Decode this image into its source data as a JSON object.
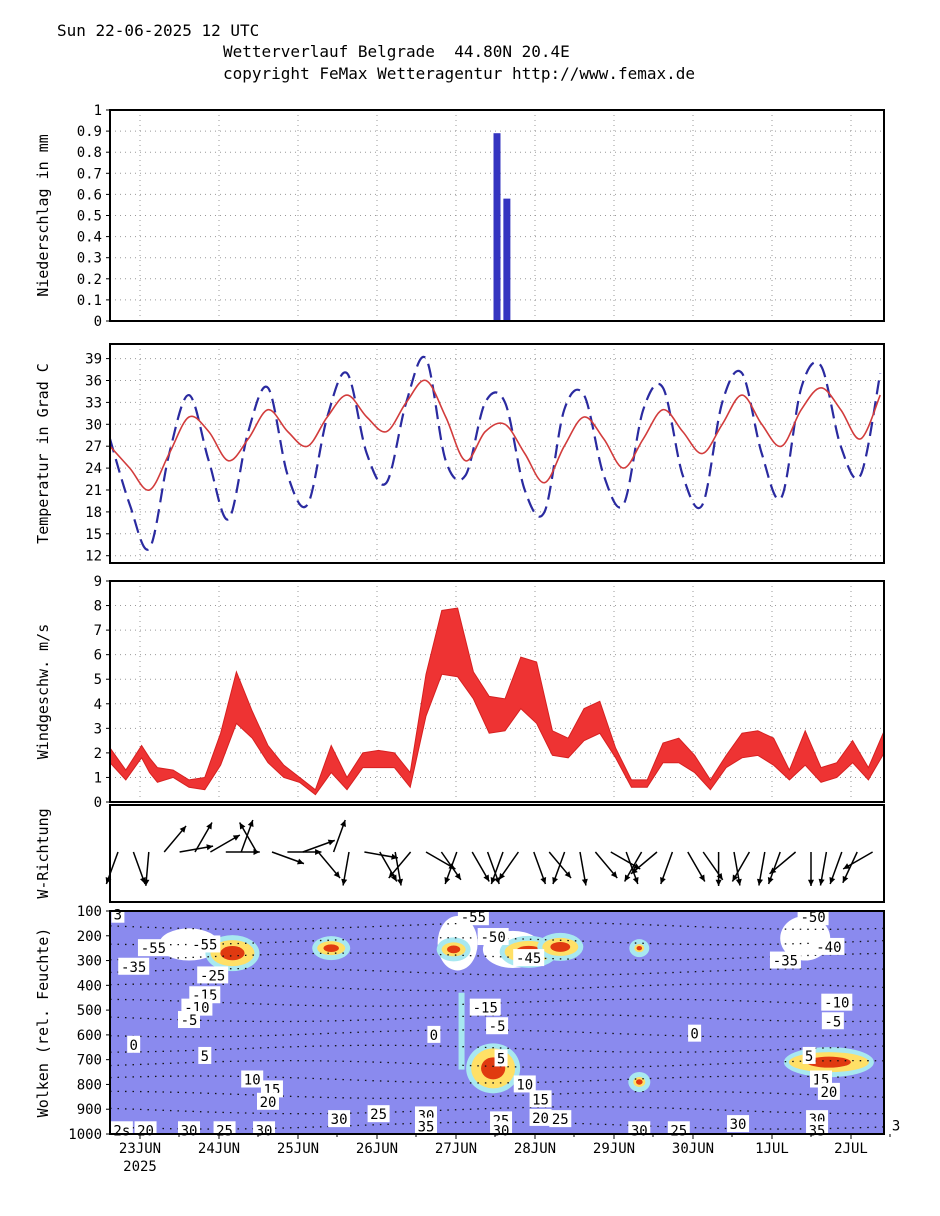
{
  "header": {
    "line1": "Sun 22-06-2025 12 UTC",
    "line2": "Wetterverlauf Belgrade  44.80N 20.4E",
    "line3": "copyright FeMax Wetteragentur http://www.femax.de"
  },
  "colors": {
    "precip": "#3535c0",
    "temp_max": "#2a2aa0",
    "temp_mean": "#d23c3c",
    "wind": "#ee3333",
    "cloud_bg": "#8a8aee",
    "cloud_high": "#ffe066",
    "cloud_core": "#e03a10"
  },
  "chart_data": [
    {
      "type": "bar",
      "title": "",
      "ylabel": "Niederschlag in mm",
      "ylim": [
        0,
        1
      ],
      "yticks": [
        "0",
        "0.1",
        "0.2",
        "0.3",
        "0.4",
        "0.5",
        "0.6",
        "0.7",
        "0.8",
        "0.9",
        "1"
      ],
      "x": [
        4.5,
        4.625
      ],
      "values": [
        0.89,
        0.58
      ]
    },
    {
      "type": "line",
      "ylabel": "Temperatur in Grad C",
      "ylim": [
        11,
        41
      ],
      "yticks": [
        "12",
        "15",
        "18",
        "21",
        "24",
        "27",
        "30",
        "33",
        "36",
        "39"
      ],
      "series": [
        {
          "name": "Temperatur (dashed)",
          "x": [
            0,
            0.25,
            0.5,
            0.75,
            1,
            1.25,
            1.5,
            1.75,
            2,
            2.25,
            2.5,
            2.75,
            3,
            3.25,
            3.5,
            3.75,
            4,
            4.25,
            4.5,
            4.75,
            5,
            5.25,
            5.5,
            5.75,
            6,
            6.25,
            6.5,
            6.75,
            7,
            7.25,
            7.5,
            7.75,
            8,
            8.25,
            8.5,
            8.75,
            9,
            9.25,
            9.5,
            9.75
          ],
          "values": [
            28,
            19,
            13,
            26,
            34,
            25,
            17,
            29,
            35,
            23,
            19,
            31,
            37,
            26,
            22,
            33,
            39,
            25,
            23,
            33,
            33,
            21,
            18,
            32,
            34,
            23,
            19,
            32,
            35,
            23,
            19,
            33,
            37,
            26,
            20,
            35,
            38,
            27,
            23,
            37
          ]
        },
        {
          "name": "Temperatur (mittel)",
          "x": [
            0,
            0.25,
            0.5,
            0.75,
            1,
            1.25,
            1.5,
            1.75,
            2,
            2.25,
            2.5,
            2.75,
            3,
            3.25,
            3.5,
            3.75,
            4,
            4.25,
            4.5,
            4.75,
            5,
            5.25,
            5.5,
            5.75,
            6,
            6.25,
            6.5,
            6.75,
            7,
            7.25,
            7.5,
            7.75,
            8,
            8.25,
            8.5,
            8.75,
            9,
            9.25,
            9.5,
            9.75
          ],
          "values": [
            27,
            24,
            21,
            26,
            31,
            29,
            25,
            28,
            32,
            29,
            27,
            31,
            34,
            31,
            29,
            33,
            36,
            31,
            25,
            29,
            30,
            26,
            22,
            27,
            31,
            28,
            24,
            28,
            32,
            29,
            26,
            30,
            34,
            30,
            27,
            32,
            35,
            32,
            28,
            34
          ]
        }
      ]
    },
    {
      "type": "area",
      "ylabel": "Windgeschw. m/s",
      "ylim": [
        0,
        9
      ],
      "yticks": [
        "0",
        "1",
        "2",
        "3",
        "4",
        "5",
        "6",
        "7",
        "8",
        "9"
      ],
      "series": [
        {
          "name": "Wind min",
          "x": [
            0,
            0.2,
            0.4,
            0.5,
            0.6,
            0.8,
            1,
            1.2,
            1.4,
            1.6,
            1.8,
            2.0,
            2.2,
            2.4,
            2.6,
            2.8,
            3.0,
            3.2,
            3.4,
            3.6,
            3.8,
            4.0,
            4.2,
            4.4,
            4.6,
            4.8,
            5.0,
            5.2,
            5.4,
            5.6,
            5.8,
            6.0,
            6.2,
            6.4,
            6.6,
            6.8,
            7.0,
            7.2,
            7.4,
            7.6,
            7.8,
            8.0,
            8.2,
            8.4,
            8.6,
            8.8,
            9.0,
            9.2,
            9.4,
            9.6,
            9.8
          ],
          "values": [
            1.6,
            0.9,
            1.8,
            1.2,
            0.8,
            1.0,
            0.6,
            0.5,
            1.5,
            3.2,
            2.6,
            1.6,
            1.0,
            0.8,
            0.3,
            1.2,
            0.5,
            1.4,
            1.4,
            1.4,
            0.6,
            3.5,
            5.2,
            5.1,
            4.2,
            2.8,
            2.9,
            3.8,
            3.2,
            1.9,
            1.8,
            2.5,
            2.8,
            1.8,
            0.6,
            0.6,
            1.6,
            1.6,
            1.2,
            0.5,
            1.4,
            1.8,
            1.9,
            1.5,
            0.9,
            1.5,
            0.8,
            1.0,
            1.6,
            0.9,
            2.0
          ]
        },
        {
          "name": "Wind max",
          "x": [
            0,
            0.2,
            0.4,
            0.5,
            0.6,
            0.8,
            1,
            1.2,
            1.4,
            1.6,
            1.8,
            2.0,
            2.2,
            2.4,
            2.6,
            2.8,
            3.0,
            3.2,
            3.4,
            3.6,
            3.8,
            4.0,
            4.2,
            4.4,
            4.6,
            4.8,
            5.0,
            5.2,
            5.4,
            5.6,
            5.8,
            6.0,
            6.2,
            6.4,
            6.6,
            6.8,
            7.0,
            7.2,
            7.4,
            7.6,
            7.8,
            8.0,
            8.2,
            8.4,
            8.6,
            8.8,
            9.0,
            9.2,
            9.4,
            9.6,
            9.8
          ],
          "values": [
            2.2,
            1.3,
            2.3,
            1.8,
            1.4,
            1.3,
            0.9,
            1.0,
            2.8,
            5.3,
            3.7,
            2.3,
            1.5,
            1.0,
            0.5,
            2.3,
            1.0,
            2.0,
            2.1,
            2.0,
            1.2,
            5.2,
            7.8,
            7.9,
            5.3,
            4.3,
            4.2,
            5.9,
            5.7,
            2.9,
            2.6,
            3.8,
            4.1,
            2.2,
            0.9,
            0.9,
            2.4,
            2.6,
            1.9,
            0.9,
            1.9,
            2.8,
            2.9,
            2.6,
            1.3,
            2.9,
            1.4,
            1.6,
            2.5,
            1.4,
            2.9
          ]
        }
      ]
    },
    {
      "type": "scatter",
      "ylabel": "W-Richtung",
      "note": "wind direction arrows"
    },
    {
      "type": "heatmap",
      "ylabel": "Wolken (rel. Feuchte)",
      "ylim": [
        100,
        1000
      ],
      "yticks": [
        "100",
        "200",
        "300",
        "400",
        "500",
        "600",
        "700",
        "800",
        "900",
        "1000"
      ],
      "xticks": [
        "23JUN",
        "24JUN",
        "25JUN",
        "26JUN",
        "27JUN",
        "28JUN",
        "29JUN",
        "30JUN",
        "1JUL",
        "2JUL"
      ],
      "year_label": "2025",
      "contour_labels": [
        {
          "t": "-55",
          "x": 1.2,
          "p": 235
        },
        {
          "t": "-55",
          "x": 0.55,
          "p": 250
        },
        {
          "t": "-35",
          "x": 0.3,
          "p": 325
        },
        {
          "t": "-25",
          "x": 1.3,
          "p": 360
        },
        {
          "t": "-15",
          "x": 1.2,
          "p": 440
        },
        {
          "t": "-10",
          "x": 1.1,
          "p": 490
        },
        {
          "t": "-5",
          "x": 1.0,
          "p": 540
        },
        {
          "t": "0",
          "x": 0.3,
          "p": 640
        },
        {
          "t": "5",
          "x": 1.2,
          "p": 685
        },
        {
          "t": "10",
          "x": 1.8,
          "p": 780
        },
        {
          "t": "15",
          "x": 2.05,
          "p": 820
        },
        {
          "t": "20",
          "x": 2.0,
          "p": 870
        },
        {
          "t": "-55",
          "x": 4.6,
          "p": 125
        },
        {
          "t": "-50",
          "x": 4.85,
          "p": 205
        },
        {
          "t": "-45",
          "x": 5.3,
          "p": 290
        },
        {
          "t": "-15",
          "x": 4.75,
          "p": 490
        },
        {
          "t": "-5",
          "x": 4.9,
          "p": 565
        },
        {
          "t": "0",
          "x": 4.1,
          "p": 600
        },
        {
          "t": "5",
          "x": 4.95,
          "p": 695
        },
        {
          "t": "10",
          "x": 5.25,
          "p": 800
        },
        {
          "t": "15",
          "x": 5.45,
          "p": 860
        },
        {
          "t": "20",
          "x": 5.45,
          "p": 935
        },
        {
          "t": "25",
          "x": 5.7,
          "p": 940
        },
        {
          "t": "0",
          "x": 7.4,
          "p": 595
        },
        {
          "t": "30",
          "x": 2.9,
          "p": 940
        },
        {
          "t": "25",
          "x": 3.4,
          "p": 920
        },
        {
          "t": "30",
          "x": 4.0,
          "p": 925
        },
        {
          "t": "35",
          "x": 4.0,
          "p": 970
        },
        {
          "t": "25",
          "x": 4.95,
          "p": 945
        },
        {
          "t": "30",
          "x": 4.95,
          "p": 985
        },
        {
          "t": "30",
          "x": 6.7,
          "p": 985
        },
        {
          "t": "25",
          "x": 7.2,
          "p": 985
        },
        {
          "t": "30",
          "x": 7.95,
          "p": 960
        },
        {
          "t": "-50",
          "x": 8.9,
          "p": 125
        },
        {
          "t": "-40",
          "x": 9.1,
          "p": 245
        },
        {
          "t": "-35",
          "x": 8.55,
          "p": 300
        },
        {
          "t": "-10",
          "x": 9.2,
          "p": 470
        },
        {
          "t": "-5",
          "x": 9.15,
          "p": 545
        },
        {
          "t": "5",
          "x": 8.85,
          "p": 685
        },
        {
          "t": "15",
          "x": 9.0,
          "p": 780
        },
        {
          "t": "20",
          "x": 9.1,
          "p": 830
        },
        {
          "t": "30",
          "x": 8.95,
          "p": 940
        },
        {
          "t": "35",
          "x": 8.95,
          "p": 985
        },
        {
          "t": "20",
          "x": 0.45,
          "p": 985
        },
        {
          "t": "30",
          "x": 1.0,
          "p": 985
        },
        {
          "t": "25",
          "x": 1.45,
          "p": 985
        },
        {
          "t": "30",
          "x": 1.95,
          "p": 985
        },
        {
          "t": "2s",
          "x": 0.15,
          "p": 985
        },
        {
          "t": "3",
          "x": 9.95,
          "p": 965
        },
        {
          "t": "3",
          "x": 0.1,
          "p": 115
        }
      ]
    }
  ]
}
